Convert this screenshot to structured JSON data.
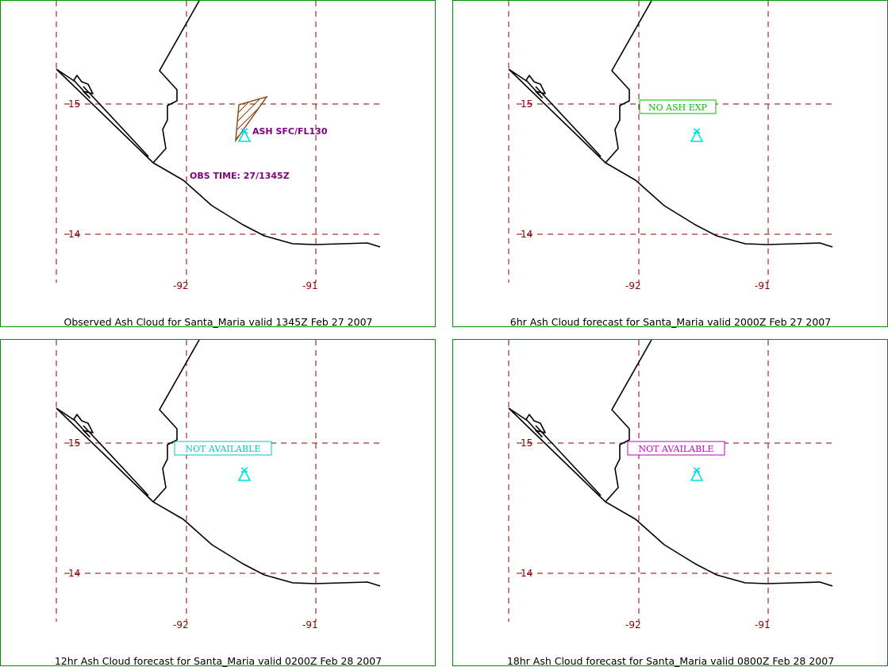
{
  "map": {
    "tick_labels": {
      "lat_15": "15",
      "lat_14": "14",
      "lon_92": "-92",
      "lon_91": "-91"
    },
    "colors": {
      "grid": "#8b0000",
      "border": "#009000",
      "coast": "#000000",
      "volcano": "#00e0e0",
      "ash": "#8b4513",
      "annotation": "#800080"
    },
    "volcano_icon": "volcano-triangle-icon"
  },
  "panels": [
    {
      "caption": "Observed Ash Cloud for Santa_Maria valid 1345Z Feb 27 2007",
      "ash_label": "ASH SFC/FL130",
      "obs_time": "OBS TIME: 27/1345Z"
    },
    {
      "caption": "6hr Ash Cloud forecast for Santa_Maria valid 2000Z Feb 27 2007",
      "status": "NO ASH EXP",
      "status_color": "#00c000"
    },
    {
      "caption": "12hr Ash Cloud forecast for Santa_Maria valid 0200Z Feb 28 2007",
      "status": "NOT AVAILABLE",
      "status_color": "#00c8c8"
    },
    {
      "caption": "18hr Ash Cloud forecast for Santa_Maria valid 0800Z Feb 28 2007",
      "status": "NOT AVAILABLE",
      "status_color": "#c000c0"
    }
  ]
}
